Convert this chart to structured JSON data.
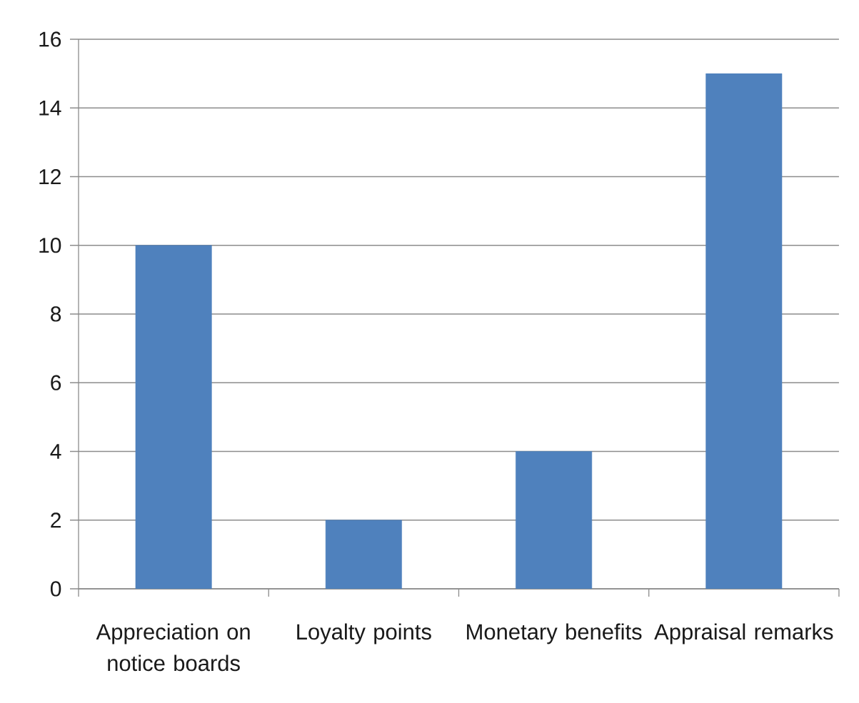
{
  "chart_data": {
    "type": "bar",
    "categories": [
      "Appreciation on notice boards",
      "Loyalty points",
      "Monetary benefits",
      "Appraisal remarks"
    ],
    "values": [
      10,
      2,
      4,
      15
    ],
    "color": "#4f81bd",
    "ylim": [
      0,
      16
    ],
    "yticks": [
      0,
      2,
      4,
      6,
      8,
      10,
      12,
      14,
      16
    ],
    "grid": "y"
  }
}
